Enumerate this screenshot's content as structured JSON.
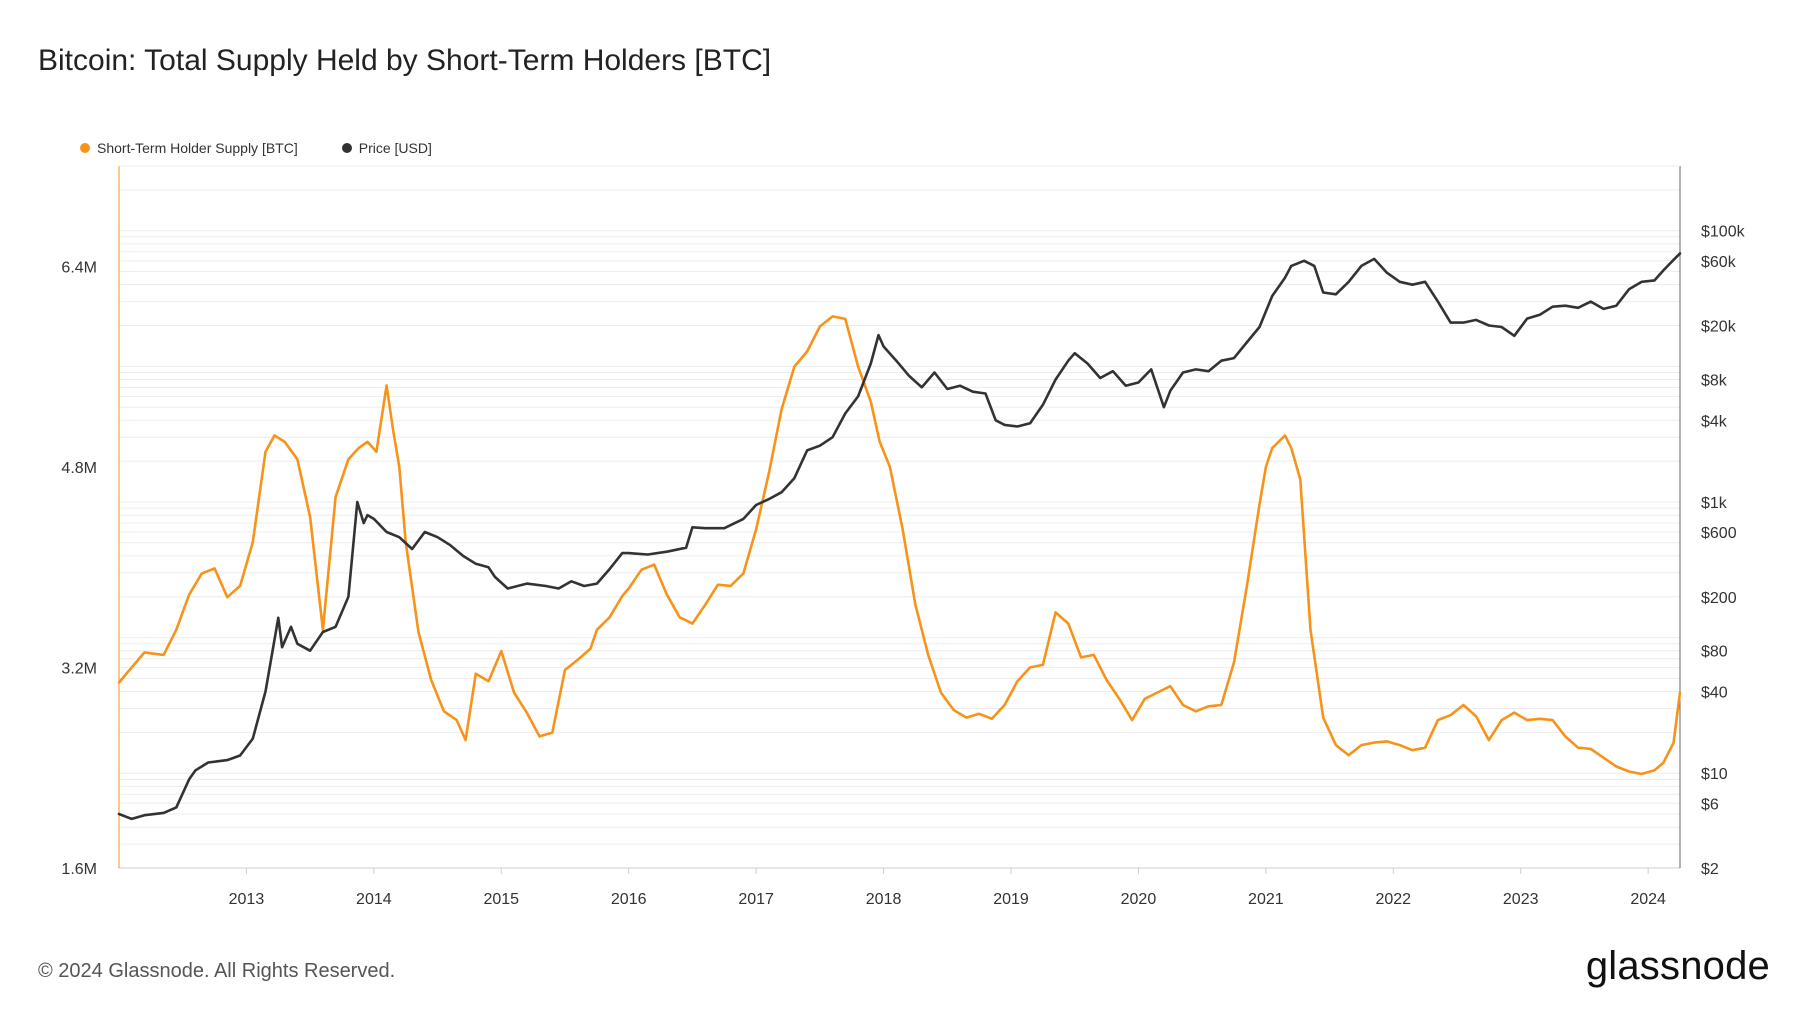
{
  "title": "Bitcoin: Total Supply Held by Short-Term Holders [BTC]",
  "footer": {
    "copyright": "© 2024 Glassnode. All Rights Reserved.",
    "brand": "glassnode"
  },
  "legend": [
    {
      "label": "Short-Term Holder Supply [BTC]",
      "color": "#f7931a"
    },
    {
      "label": "Price [USD]",
      "color": "#333333"
    }
  ],
  "chart_data": {
    "type": "line",
    "title": "Bitcoin: Total Supply Held by Short-Term Holders [BTC]",
    "xlim": [
      2012.0,
      2024.25
    ],
    "x_ticks": [
      "2013",
      "2014",
      "2015",
      "2016",
      "2017",
      "2018",
      "2019",
      "2020",
      "2021",
      "2022",
      "2023",
      "2024"
    ],
    "y_left": {
      "scale": "linear",
      "ylim": [
        1600000,
        7200000
      ],
      "ticks": [
        1600000,
        3200000,
        4800000,
        6400000
      ],
      "tick_labels": [
        "1.6M",
        "3.2M",
        "4.8M",
        "6.4M"
      ]
    },
    "y_right": {
      "scale": "log",
      "ylim": [
        2,
        300000
      ],
      "ticks": [
        2,
        6,
        10,
        40,
        80,
        200,
        600,
        1000,
        4000,
        8000,
        20000,
        60000,
        100000
      ],
      "tick_labels": [
        "$2",
        "$6",
        "$10",
        "$40",
        "$80",
        "$200",
        "$600",
        "$1k",
        "$4k",
        "$8k",
        "$20k",
        "$60k",
        "$100k"
      ]
    },
    "grid": true,
    "legend_position": "top-left",
    "series": [
      {
        "name": "Short-Term Holder Supply [BTC]",
        "axis": "left",
        "color": "#f7931a",
        "x": [
          2012.0,
          2012.1,
          2012.2,
          2012.35,
          2012.45,
          2012.55,
          2012.65,
          2012.75,
          2012.85,
          2012.95,
          2013.05,
          2013.15,
          2013.22,
          2013.3,
          2013.4,
          2013.5,
          2013.6,
          2013.7,
          2013.8,
          2013.88,
          2013.95,
          2014.02,
          2014.1,
          2014.15,
          2014.2,
          2014.25,
          2014.35,
          2014.45,
          2014.55,
          2014.65,
          2014.72,
          2014.8,
          2014.9,
          2015.0,
          2015.1,
          2015.2,
          2015.3,
          2015.4,
          2015.5,
          2015.6,
          2015.7,
          2015.75,
          2015.85,
          2015.95,
          2016.0,
          2016.1,
          2016.2,
          2016.3,
          2016.4,
          2016.5,
          2016.6,
          2016.7,
          2016.8,
          2016.9,
          2017.0,
          2017.1,
          2017.2,
          2017.3,
          2017.4,
          2017.5,
          2017.6,
          2017.7,
          2017.8,
          2017.9,
          2017.97,
          2018.05,
          2018.15,
          2018.25,
          2018.35,
          2018.45,
          2018.55,
          2018.65,
          2018.75,
          2018.85,
          2018.95,
          2019.05,
          2019.15,
          2019.25,
          2019.35,
          2019.45,
          2019.55,
          2019.65,
          2019.75,
          2019.85,
          2019.95,
          2020.05,
          2020.15,
          2020.25,
          2020.35,
          2020.45,
          2020.55,
          2020.65,
          2020.75,
          2020.85,
          2020.95,
          2021.0,
          2021.05,
          2021.15,
          2021.2,
          2021.27,
          2021.35,
          2021.45,
          2021.55,
          2021.65,
          2021.75,
          2021.85,
          2021.95,
          2022.05,
          2022.15,
          2022.25,
          2022.35,
          2022.45,
          2022.55,
          2022.65,
          2022.75,
          2022.85,
          2022.95,
          2023.05,
          2023.15,
          2023.25,
          2023.35,
          2023.45,
          2023.55,
          2023.65,
          2023.75,
          2023.85,
          2023.95,
          2024.05,
          2024.12,
          2024.2,
          2024.25
        ],
        "y": [
          3080000,
          3200000,
          3320000,
          3300000,
          3500000,
          3780000,
          3950000,
          3990000,
          3760000,
          3850000,
          4200000,
          4920000,
          5050000,
          5000000,
          4860000,
          4400000,
          3500000,
          4560000,
          4860000,
          4950000,
          5000000,
          4920000,
          5450000,
          5100000,
          4800000,
          4200000,
          3480000,
          3100000,
          2850000,
          2780000,
          2620000,
          3150000,
          3090000,
          3330000,
          3000000,
          2840000,
          2650000,
          2680000,
          3180000,
          3260000,
          3350000,
          3500000,
          3600000,
          3770000,
          3830000,
          3980000,
          4020000,
          3780000,
          3600000,
          3550000,
          3700000,
          3860000,
          3850000,
          3950000,
          4300000,
          4750000,
          5260000,
          5600000,
          5720000,
          5920000,
          6000000,
          5980000,
          5600000,
          5320000,
          5000000,
          4800000,
          4300000,
          3700000,
          3300000,
          3000000,
          2860000,
          2800000,
          2830000,
          2790000,
          2900000,
          3090000,
          3200000,
          3220000,
          3640000,
          3550000,
          3280000,
          3300000,
          3100000,
          2950000,
          2780000,
          2950000,
          3000000,
          3050000,
          2900000,
          2850000,
          2890000,
          2900000,
          3240000,
          3840000,
          4500000,
          4800000,
          4950000,
          5050000,
          4950000,
          4700000,
          3500000,
          2800000,
          2580000,
          2500000,
          2580000,
          2600000,
          2610000,
          2580000,
          2540000,
          2560000,
          2780000,
          2820000,
          2900000,
          2810000,
          2620000,
          2780000,
          2840000,
          2780000,
          2790000,
          2780000,
          2650000,
          2560000,
          2550000,
          2480000,
          2410000,
          2370000,
          2350000,
          2380000,
          2440000,
          2600000,
          3000000
        ]
      },
      {
        "name": "Price [USD]",
        "axis": "right",
        "color": "#333333",
        "x": [
          2012.0,
          2012.1,
          2012.2,
          2012.35,
          2012.45,
          2012.55,
          2012.6,
          2012.7,
          2012.85,
          2012.95,
          2013.05,
          2013.15,
          2013.25,
          2013.28,
          2013.35,
          2013.4,
          2013.5,
          2013.6,
          2013.7,
          2013.8,
          2013.87,
          2013.92,
          2013.95,
          2014.0,
          2014.1,
          2014.2,
          2014.3,
          2014.4,
          2014.5,
          2014.6,
          2014.7,
          2014.8,
          2014.9,
          2014.95,
          2015.05,
          2015.2,
          2015.35,
          2015.45,
          2015.55,
          2015.65,
          2015.75,
          2015.85,
          2015.95,
          2016.0,
          2016.15,
          2016.3,
          2016.45,
          2016.5,
          2016.6,
          2016.75,
          2016.9,
          2017.0,
          2017.1,
          2017.2,
          2017.3,
          2017.4,
          2017.5,
          2017.6,
          2017.7,
          2017.8,
          2017.9,
          2017.96,
          2018.0,
          2018.1,
          2018.2,
          2018.3,
          2018.4,
          2018.5,
          2018.6,
          2018.7,
          2018.8,
          2018.88,
          2018.95,
          2019.05,
          2019.15,
          2019.25,
          2019.35,
          2019.45,
          2019.5,
          2019.6,
          2019.7,
          2019.8,
          2019.9,
          2020.0,
          2020.1,
          2020.2,
          2020.25,
          2020.35,
          2020.45,
          2020.55,
          2020.65,
          2020.75,
          2020.85,
          2020.95,
          2021.05,
          2021.15,
          2021.2,
          2021.3,
          2021.38,
          2021.45,
          2021.55,
          2021.65,
          2021.75,
          2021.85,
          2021.95,
          2022.05,
          2022.15,
          2022.25,
          2022.35,
          2022.45,
          2022.55,
          2022.65,
          2022.75,
          2022.85,
          2022.95,
          2023.05,
          2023.15,
          2023.25,
          2023.35,
          2023.45,
          2023.55,
          2023.65,
          2023.75,
          2023.85,
          2023.95,
          2024.05,
          2024.12,
          2024.2,
          2024.25
        ],
        "y": [
          5,
          4.6,
          4.9,
          5.1,
          5.6,
          9,
          10.5,
          12,
          12.5,
          13.5,
          18,
          40,
          140,
          85,
          120,
          90,
          80,
          110,
          120,
          200,
          1000,
          700,
          800,
          750,
          600,
          550,
          450,
          600,
          550,
          480,
          400,
          350,
          330,
          280,
          230,
          250,
          240,
          230,
          260,
          240,
          250,
          320,
          420,
          420,
          410,
          430,
          460,
          650,
          640,
          640,
          750,
          950,
          1050,
          1180,
          1500,
          2400,
          2600,
          3000,
          4500,
          6000,
          10500,
          17000,
          14000,
          11000,
          8500,
          7000,
          9000,
          6800,
          7200,
          6500,
          6300,
          4000,
          3700,
          3600,
          3800,
          5200,
          8000,
          11000,
          12500,
          10500,
          8200,
          9200,
          7200,
          7600,
          9500,
          5000,
          6600,
          9000,
          9500,
          9200,
          11000,
          11500,
          15000,
          19500,
          33000,
          45000,
          55000,
          60000,
          55000,
          35000,
          34000,
          42000,
          55000,
          62000,
          49000,
          42000,
          40000,
          42000,
          30000,
          21000,
          21000,
          22000,
          20000,
          19500,
          16800,
          22500,
          24000,
          27500,
          28000,
          27000,
          30000,
          26500,
          28000,
          37000,
          42000,
          43000,
          51000,
          61000,
          68000
        ]
      }
    ]
  }
}
